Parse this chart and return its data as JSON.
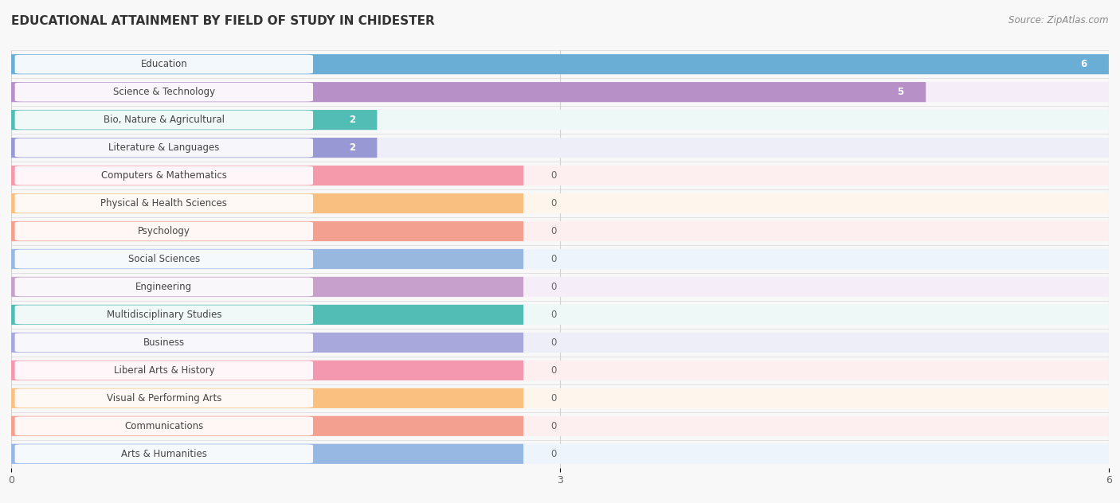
{
  "title": "EDUCATIONAL ATTAINMENT BY FIELD OF STUDY IN CHIDESTER",
  "source": "Source: ZipAtlas.com",
  "categories": [
    "Education",
    "Science & Technology",
    "Bio, Nature & Agricultural",
    "Literature & Languages",
    "Computers & Mathematics",
    "Physical & Health Sciences",
    "Psychology",
    "Social Sciences",
    "Engineering",
    "Multidisciplinary Studies",
    "Business",
    "Liberal Arts & History",
    "Visual & Performing Arts",
    "Communications",
    "Arts & Humanities"
  ],
  "values": [
    6,
    5,
    2,
    2,
    0,
    0,
    0,
    0,
    0,
    0,
    0,
    0,
    0,
    0,
    0
  ],
  "bar_colors": [
    "#6aaed6",
    "#b890c8",
    "#52bdb5",
    "#9898d4",
    "#f49aaa",
    "#f9bf80",
    "#f4a090",
    "#98b8e0",
    "#c8a0cc",
    "#52bdb5",
    "#a8a8dc",
    "#f498b0",
    "#f9c080",
    "#f4a090",
    "#98b8e4"
  ],
  "row_bg_colors": [
    "#eef4fb",
    "#f5eef8",
    "#eef8f7",
    "#eeeef8",
    "#fdeef0",
    "#fef6ec",
    "#fdeef0",
    "#eef4fb",
    "#f5eef8",
    "#eef8f7",
    "#eeeef8",
    "#fdeef0",
    "#fef6ec",
    "#fdeef0",
    "#eef4fb"
  ],
  "xlim": [
    0,
    6
  ],
  "xticks": [
    0,
    3,
    6
  ],
  "background_color": "#f8f8f8",
  "title_fontsize": 11,
  "source_fontsize": 8.5,
  "bar_label_fontsize": 8.5,
  "category_fontsize": 8.5,
  "zero_bar_width": 2.8
}
